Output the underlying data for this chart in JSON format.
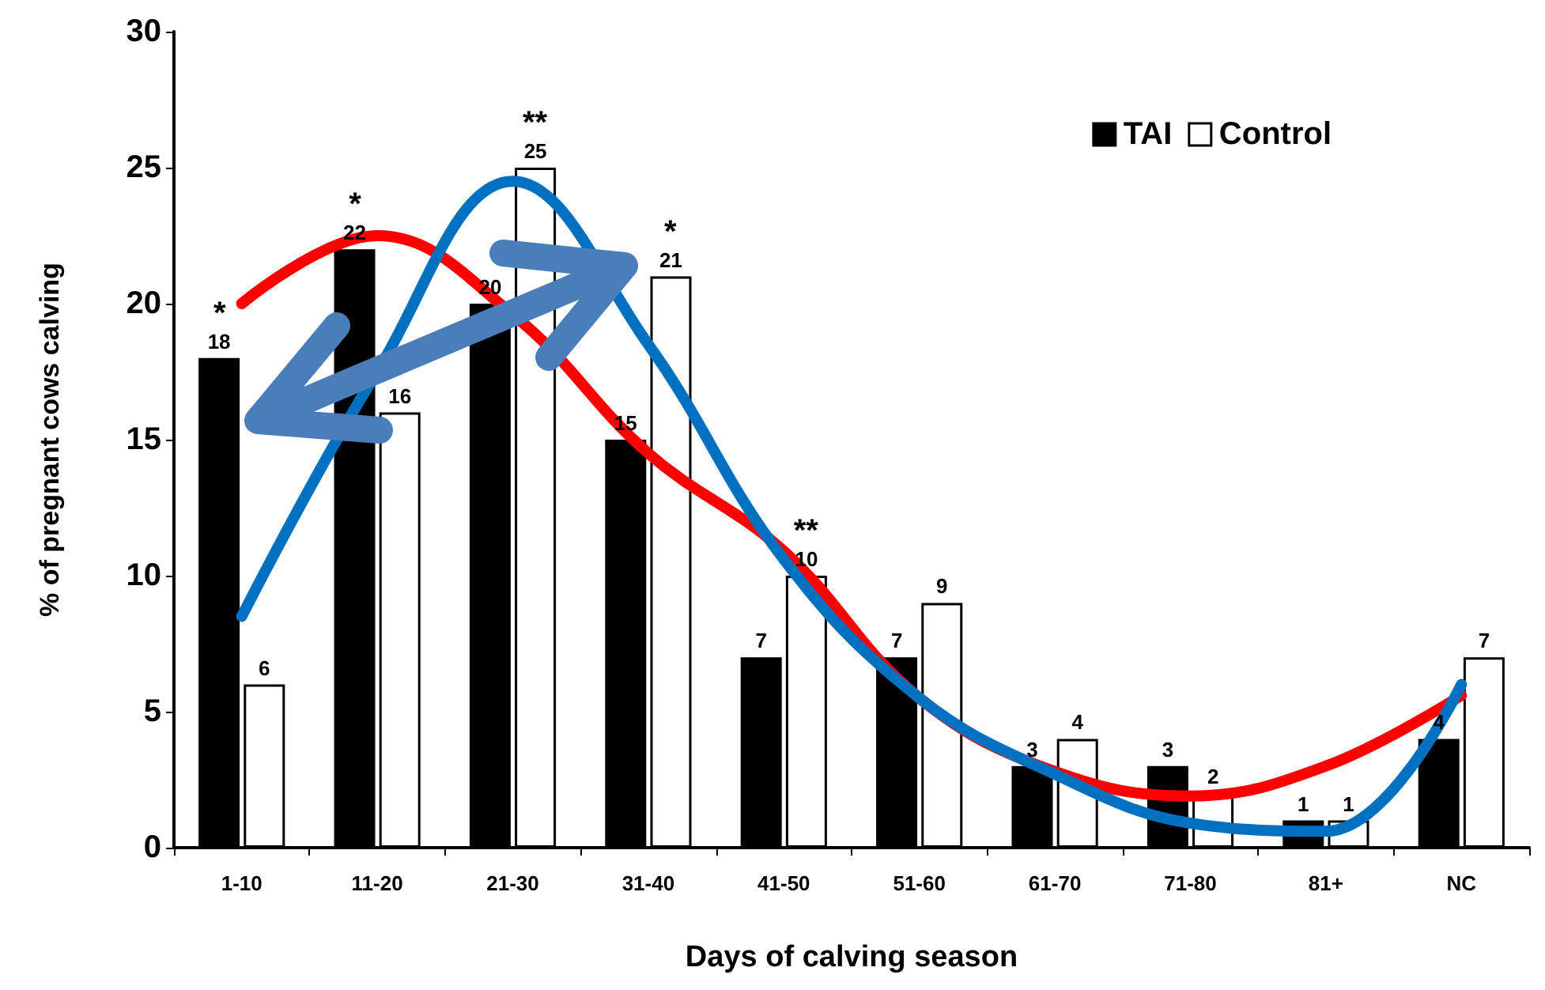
{
  "chart_data": {
    "type": "bar",
    "xlabel": "Days of calving season",
    "ylabel": "% of pregnant cows calving",
    "categories": [
      "1-10",
      "11-20",
      "21-30",
      "31-40",
      "41-50",
      "51-60",
      "61-70",
      "71-80",
      "81+",
      "NC"
    ],
    "series": [
      {
        "name": "TAI",
        "color": "#000000",
        "values": [
          18,
          22,
          20,
          15,
          7,
          7,
          3,
          3,
          1,
          4
        ],
        "value_labels": [
          "18",
          "22",
          "20",
          "15",
          "7",
          "7",
          "3",
          "3",
          "1",
          "4"
        ]
      },
      {
        "name": "Control",
        "color": "#ffffff",
        "values": [
          6,
          16,
          25,
          21,
          10,
          9,
          4,
          2,
          1,
          7
        ],
        "value_labels": [
          "6",
          "16",
          "25",
          "21",
          "10",
          "9",
          "4",
          "2",
          "1",
          "7"
        ]
      },
      {
        "type": "line",
        "color": "#ff0000",
        "marker": "none",
        "values": [
          20,
          22.5,
          19.6,
          14.5,
          10.9,
          5.5,
          2.8,
          1.9,
          3,
          5.6
        ]
      },
      {
        "type": "line",
        "color": "#0070c0",
        "marker": "none",
        "values": [
          8.5,
          17.5,
          24.5,
          18.5,
          10.6,
          5.5,
          2.7,
          0.9,
          0.6,
          6
        ]
      }
    ],
    "annotations": [
      {
        "text": "*",
        "x": "1-10",
        "y": 18
      },
      {
        "text": "*",
        "x": "11-20",
        "y": 22
      },
      {
        "text": "**",
        "x": "21-30",
        "y": 25
      },
      {
        "text": "*",
        "x": "31-40",
        "y": 21
      },
      {
        "text": "**",
        "x": "41-50",
        "y": 10
      }
    ],
    "ylim": [
      0,
      30
    ],
    "yticks": [
      0,
      5,
      10,
      15,
      20,
      25,
      30
    ],
    "grid": false,
    "legend": "top right"
  }
}
